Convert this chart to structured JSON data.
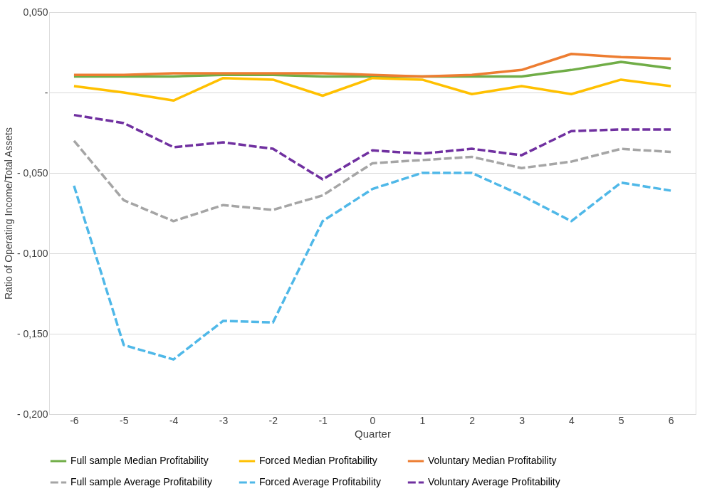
{
  "chart_data": {
    "type": "line",
    "xlabel": "Quarter",
    "ylabel": "Ratio of Operating Income/Total Assets",
    "categories": [
      "-6",
      "-5",
      "-4",
      "-3",
      "-2",
      "-1",
      "0",
      "1",
      "2",
      "3",
      "4",
      "5",
      "6"
    ],
    "ylim": [
      -0.2,
      0.05
    ],
    "yticks": [
      {
        "value": 0.05,
        "label": "0,050"
      },
      {
        "value": 0,
        "label": "-"
      },
      {
        "value": -0.05,
        "label": "- 0,050"
      },
      {
        "value": -0.1,
        "label": "- 0,100"
      },
      {
        "value": -0.15,
        "label": "- 0,150"
      },
      {
        "value": -0.2,
        "label": "- 0,200"
      }
    ],
    "grid": "y",
    "legend": "bottom",
    "marker": "none",
    "series": [
      {
        "name": "Full sample Median Profitability",
        "color": "#70ad47",
        "line_style": "solid",
        "values": [
          0.01,
          0.01,
          0.01,
          0.011,
          0.011,
          0.01,
          0.01,
          0.01,
          0.01,
          0.01,
          0.014,
          0.019,
          0.015
        ]
      },
      {
        "name": "Forced Median Profitability",
        "color": "#ffc000",
        "line_style": "solid",
        "values": [
          0.004,
          0.0,
          -0.005,
          0.009,
          0.008,
          -0.002,
          0.009,
          0.008,
          -0.001,
          0.004,
          -0.001,
          0.008,
          0.004
        ]
      },
      {
        "name": "Voluntary Median Profitability",
        "color": "#ed7d31",
        "line_style": "solid",
        "values": [
          0.011,
          0.011,
          0.012,
          0.012,
          0.012,
          0.012,
          0.011,
          0.01,
          0.011,
          0.014,
          0.024,
          0.022,
          0.021
        ]
      },
      {
        "name": "Full sample Average Profitability",
        "color": "#a5a5a5",
        "line_style": "dashed",
        "values": [
          -0.03,
          -0.067,
          -0.08,
          -0.07,
          -0.073,
          -0.064,
          -0.044,
          -0.042,
          -0.04,
          -0.047,
          -0.043,
          -0.035,
          -0.037
        ]
      },
      {
        "name": "Forced Average Profitability",
        "color": "#4fb8e8",
        "line_style": "dashed",
        "values": [
          -0.058,
          -0.157,
          -0.166,
          -0.142,
          -0.143,
          -0.08,
          -0.06,
          -0.05,
          -0.05,
          -0.064,
          -0.08,
          -0.056,
          -0.061
        ]
      },
      {
        "name": "Voluntary Average Profitability",
        "color": "#7030a0",
        "line_style": "dashed",
        "values": [
          -0.014,
          -0.019,
          -0.034,
          -0.031,
          -0.035,
          -0.054,
          -0.036,
          -0.038,
          -0.035,
          -0.039,
          -0.024,
          -0.023,
          -0.023
        ]
      }
    ]
  }
}
